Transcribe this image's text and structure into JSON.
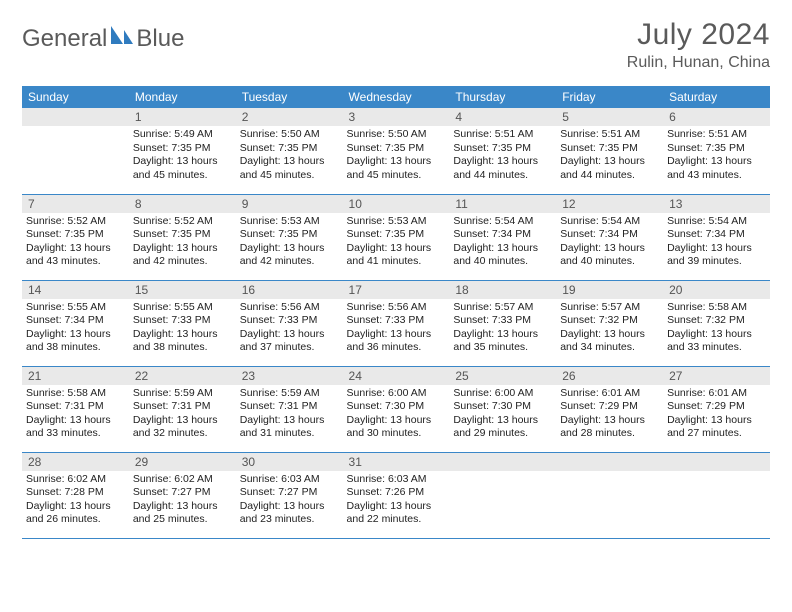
{
  "logo": {
    "text1": "General",
    "text2": "Blue"
  },
  "title": "July 2024",
  "location": "Rulin, Hunan, China",
  "colors": {
    "header_bg": "#3a87c8",
    "header_fg": "#ffffff",
    "daynum_bg": "#e9e9e9",
    "border": "#3a87c8",
    "logo_blue": "#2f7bbf"
  },
  "weekdays": [
    "Sunday",
    "Monday",
    "Tuesday",
    "Wednesday",
    "Thursday",
    "Friday",
    "Saturday"
  ],
  "weeks": [
    [
      {
        "n": "",
        "l1": "",
        "l2": "",
        "l3": "",
        "l4": ""
      },
      {
        "n": "1",
        "l1": "Sunrise: 5:49 AM",
        "l2": "Sunset: 7:35 PM",
        "l3": "Daylight: 13 hours",
        "l4": "and 45 minutes."
      },
      {
        "n": "2",
        "l1": "Sunrise: 5:50 AM",
        "l2": "Sunset: 7:35 PM",
        "l3": "Daylight: 13 hours",
        "l4": "and 45 minutes."
      },
      {
        "n": "3",
        "l1": "Sunrise: 5:50 AM",
        "l2": "Sunset: 7:35 PM",
        "l3": "Daylight: 13 hours",
        "l4": "and 45 minutes."
      },
      {
        "n": "4",
        "l1": "Sunrise: 5:51 AM",
        "l2": "Sunset: 7:35 PM",
        "l3": "Daylight: 13 hours",
        "l4": "and 44 minutes."
      },
      {
        "n": "5",
        "l1": "Sunrise: 5:51 AM",
        "l2": "Sunset: 7:35 PM",
        "l3": "Daylight: 13 hours",
        "l4": "and 44 minutes."
      },
      {
        "n": "6",
        "l1": "Sunrise: 5:51 AM",
        "l2": "Sunset: 7:35 PM",
        "l3": "Daylight: 13 hours",
        "l4": "and 43 minutes."
      }
    ],
    [
      {
        "n": "7",
        "l1": "Sunrise: 5:52 AM",
        "l2": "Sunset: 7:35 PM",
        "l3": "Daylight: 13 hours",
        "l4": "and 43 minutes."
      },
      {
        "n": "8",
        "l1": "Sunrise: 5:52 AM",
        "l2": "Sunset: 7:35 PM",
        "l3": "Daylight: 13 hours",
        "l4": "and 42 minutes."
      },
      {
        "n": "9",
        "l1": "Sunrise: 5:53 AM",
        "l2": "Sunset: 7:35 PM",
        "l3": "Daylight: 13 hours",
        "l4": "and 42 minutes."
      },
      {
        "n": "10",
        "l1": "Sunrise: 5:53 AM",
        "l2": "Sunset: 7:35 PM",
        "l3": "Daylight: 13 hours",
        "l4": "and 41 minutes."
      },
      {
        "n": "11",
        "l1": "Sunrise: 5:54 AM",
        "l2": "Sunset: 7:34 PM",
        "l3": "Daylight: 13 hours",
        "l4": "and 40 minutes."
      },
      {
        "n": "12",
        "l1": "Sunrise: 5:54 AM",
        "l2": "Sunset: 7:34 PM",
        "l3": "Daylight: 13 hours",
        "l4": "and 40 minutes."
      },
      {
        "n": "13",
        "l1": "Sunrise: 5:54 AM",
        "l2": "Sunset: 7:34 PM",
        "l3": "Daylight: 13 hours",
        "l4": "and 39 minutes."
      }
    ],
    [
      {
        "n": "14",
        "l1": "Sunrise: 5:55 AM",
        "l2": "Sunset: 7:34 PM",
        "l3": "Daylight: 13 hours",
        "l4": "and 38 minutes."
      },
      {
        "n": "15",
        "l1": "Sunrise: 5:55 AM",
        "l2": "Sunset: 7:33 PM",
        "l3": "Daylight: 13 hours",
        "l4": "and 38 minutes."
      },
      {
        "n": "16",
        "l1": "Sunrise: 5:56 AM",
        "l2": "Sunset: 7:33 PM",
        "l3": "Daylight: 13 hours",
        "l4": "and 37 minutes."
      },
      {
        "n": "17",
        "l1": "Sunrise: 5:56 AM",
        "l2": "Sunset: 7:33 PM",
        "l3": "Daylight: 13 hours",
        "l4": "and 36 minutes."
      },
      {
        "n": "18",
        "l1": "Sunrise: 5:57 AM",
        "l2": "Sunset: 7:33 PM",
        "l3": "Daylight: 13 hours",
        "l4": "and 35 minutes."
      },
      {
        "n": "19",
        "l1": "Sunrise: 5:57 AM",
        "l2": "Sunset: 7:32 PM",
        "l3": "Daylight: 13 hours",
        "l4": "and 34 minutes."
      },
      {
        "n": "20",
        "l1": "Sunrise: 5:58 AM",
        "l2": "Sunset: 7:32 PM",
        "l3": "Daylight: 13 hours",
        "l4": "and 33 minutes."
      }
    ],
    [
      {
        "n": "21",
        "l1": "Sunrise: 5:58 AM",
        "l2": "Sunset: 7:31 PM",
        "l3": "Daylight: 13 hours",
        "l4": "and 33 minutes."
      },
      {
        "n": "22",
        "l1": "Sunrise: 5:59 AM",
        "l2": "Sunset: 7:31 PM",
        "l3": "Daylight: 13 hours",
        "l4": "and 32 minutes."
      },
      {
        "n": "23",
        "l1": "Sunrise: 5:59 AM",
        "l2": "Sunset: 7:31 PM",
        "l3": "Daylight: 13 hours",
        "l4": "and 31 minutes."
      },
      {
        "n": "24",
        "l1": "Sunrise: 6:00 AM",
        "l2": "Sunset: 7:30 PM",
        "l3": "Daylight: 13 hours",
        "l4": "and 30 minutes."
      },
      {
        "n": "25",
        "l1": "Sunrise: 6:00 AM",
        "l2": "Sunset: 7:30 PM",
        "l3": "Daylight: 13 hours",
        "l4": "and 29 minutes."
      },
      {
        "n": "26",
        "l1": "Sunrise: 6:01 AM",
        "l2": "Sunset: 7:29 PM",
        "l3": "Daylight: 13 hours",
        "l4": "and 28 minutes."
      },
      {
        "n": "27",
        "l1": "Sunrise: 6:01 AM",
        "l2": "Sunset: 7:29 PM",
        "l3": "Daylight: 13 hours",
        "l4": "and 27 minutes."
      }
    ],
    [
      {
        "n": "28",
        "l1": "Sunrise: 6:02 AM",
        "l2": "Sunset: 7:28 PM",
        "l3": "Daylight: 13 hours",
        "l4": "and 26 minutes."
      },
      {
        "n": "29",
        "l1": "Sunrise: 6:02 AM",
        "l2": "Sunset: 7:27 PM",
        "l3": "Daylight: 13 hours",
        "l4": "and 25 minutes."
      },
      {
        "n": "30",
        "l1": "Sunrise: 6:03 AM",
        "l2": "Sunset: 7:27 PM",
        "l3": "Daylight: 13 hours",
        "l4": "and 23 minutes."
      },
      {
        "n": "31",
        "l1": "Sunrise: 6:03 AM",
        "l2": "Sunset: 7:26 PM",
        "l3": "Daylight: 13 hours",
        "l4": "and 22 minutes."
      },
      {
        "n": "",
        "l1": "",
        "l2": "",
        "l3": "",
        "l4": ""
      },
      {
        "n": "",
        "l1": "",
        "l2": "",
        "l3": "",
        "l4": ""
      },
      {
        "n": "",
        "l1": "",
        "l2": "",
        "l3": "",
        "l4": ""
      }
    ]
  ]
}
